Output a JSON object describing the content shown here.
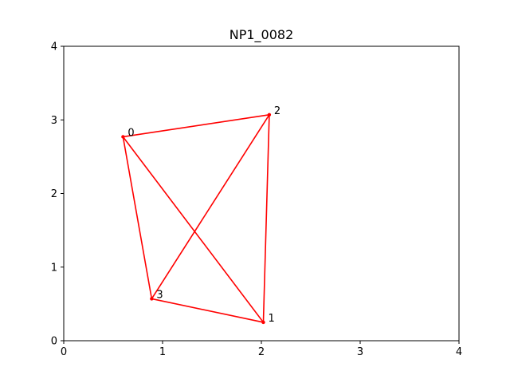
{
  "chart_data": {
    "type": "line",
    "title": "NP1_0082",
    "xlabel": "",
    "ylabel": "",
    "xlim": [
      0,
      4
    ],
    "ylim": [
      0,
      4
    ],
    "xticks": [
      0,
      1,
      2,
      3,
      4
    ],
    "yticks": [
      0,
      1,
      2,
      3,
      4
    ],
    "xtick_labels": [
      "0",
      "1",
      "2",
      "3",
      "4"
    ],
    "ytick_labels": [
      "0",
      "1",
      "2",
      "3",
      "4"
    ],
    "grid": false,
    "line_color": "#ff0000",
    "points": [
      {
        "label": "0",
        "x": 0.6,
        "y": 2.77
      },
      {
        "label": "1",
        "x": 2.02,
        "y": 0.25
      },
      {
        "label": "2",
        "x": 2.08,
        "y": 3.07
      },
      {
        "label": "3",
        "x": 0.89,
        "y": 0.57
      }
    ],
    "edges": [
      [
        0,
        2
      ],
      [
        2,
        1
      ],
      [
        1,
        3
      ],
      [
        3,
        0
      ],
      [
        0,
        1
      ],
      [
        3,
        2
      ]
    ]
  }
}
